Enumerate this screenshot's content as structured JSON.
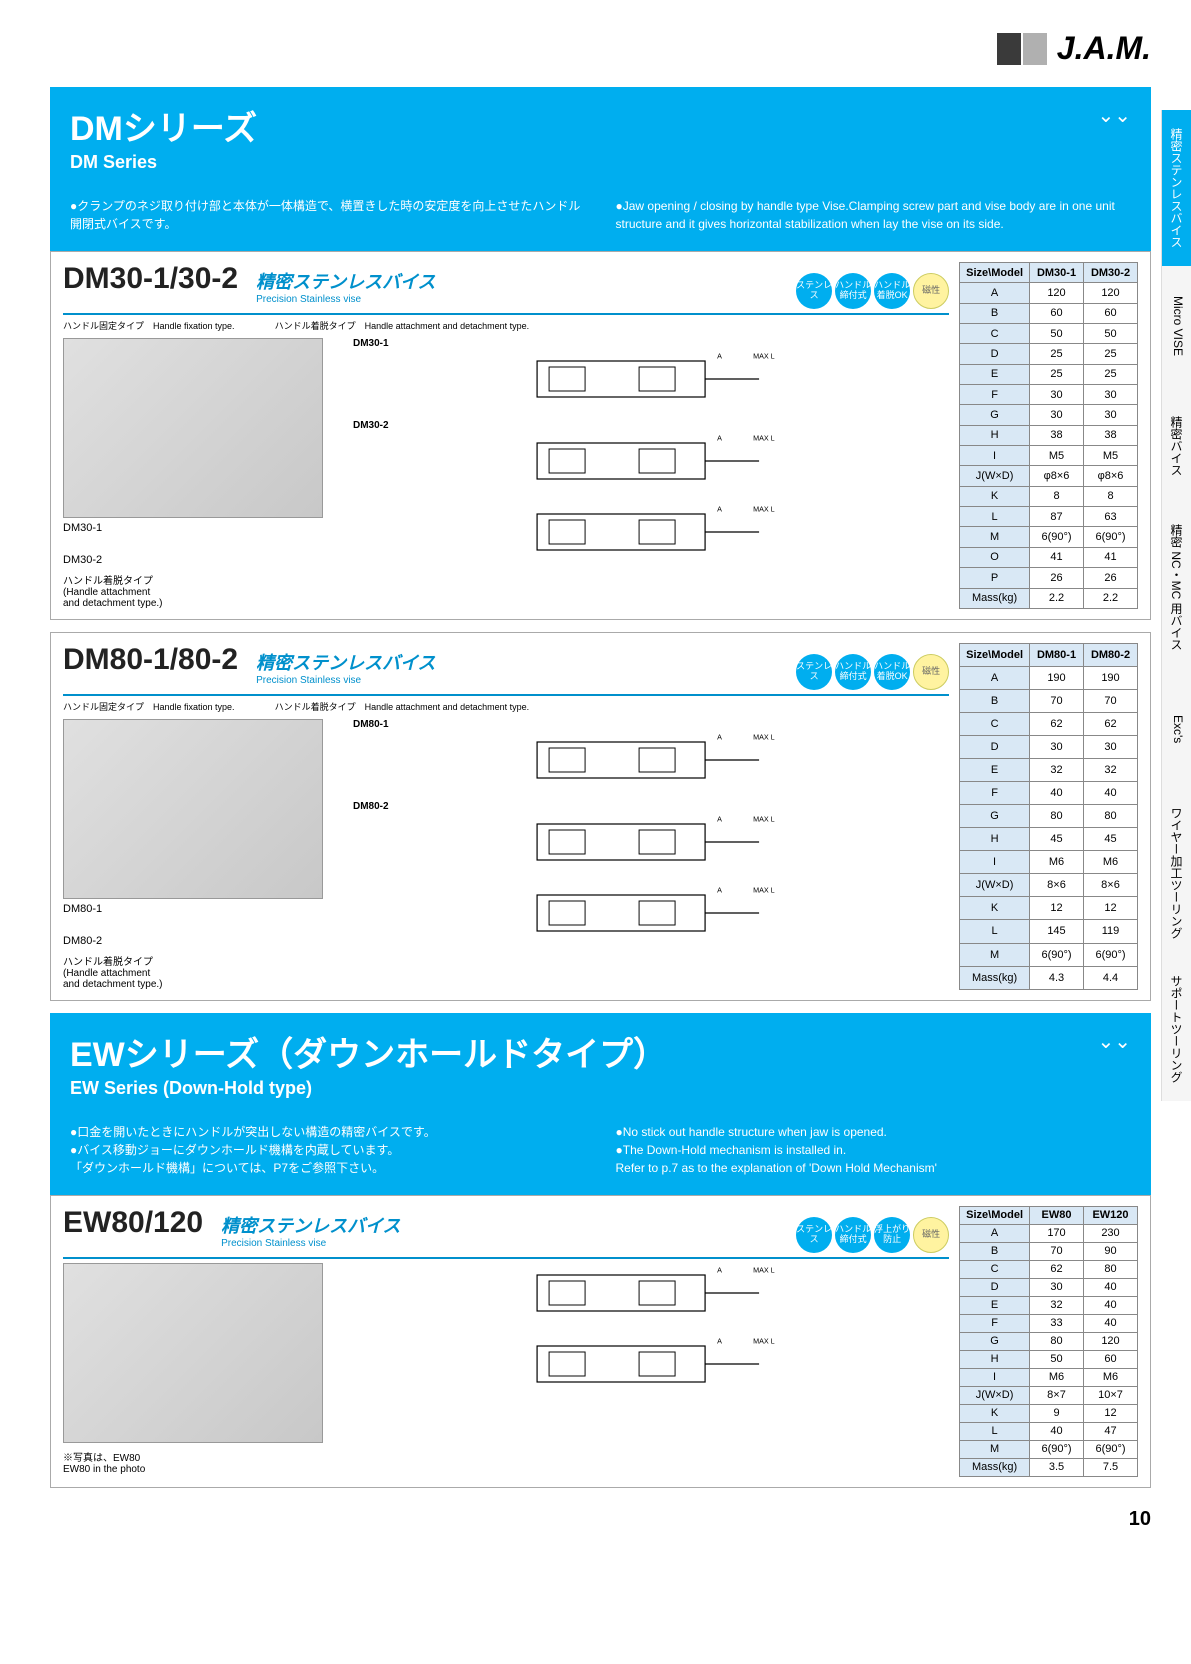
{
  "logo_text": "J.A.M.",
  "page_number": "10",
  "side_tabs": [
    {
      "label": "精密ステンレスバイス",
      "active": true
    },
    {
      "label": "Micro VISE",
      "active": false
    },
    {
      "label": "精密バイス",
      "active": false
    },
    {
      "label": "精密 NC・MC 用バイス",
      "active": false
    },
    {
      "label": "Exc's",
      "active": false
    },
    {
      "label": "ワイヤー加工ツーリング",
      "active": false
    },
    {
      "label": "サポートツーリング",
      "active": false
    }
  ],
  "series": [
    {
      "title": "DMシリーズ",
      "subtitle": "DM Series",
      "desc_jp": "●クランプのネジ取り付け部と本体が一体構造で、横置きした時の安定度を向上させたハンドル開閉式バイスです。",
      "desc_en": "●Jaw opening / closing by handle type Vise.Clamping screw part and vise body are in one unit structure and it gives horizontal stabilization when lay the vise on its side.",
      "products": [
        {
          "name": "DM30-1/30-2",
          "tag": "精密ステンレスバイス",
          "tag_en": "Precision Stainless vise",
          "subtypes_l": "ハンドル固定タイプ　Handle fixation type.",
          "subtypes_r": "ハンドル着脱タイプ　Handle attachment and detachment type.",
          "badges": [
            "ステンレス",
            "ハンドル\n締付式",
            "ハンドル\n着脱OK",
            "磁性"
          ],
          "badge_yellow_idx": 3,
          "photo_label": "DM30-1",
          "photo2_label": "DM30-2",
          "photo2_note": "ハンドル着脱タイプ\n(Handle attachment\nand detachment type.)",
          "drawing_labels": [
            "DM30-1",
            "DM30-2"
          ],
          "spec_headers": [
            "Size\\Model",
            "DM30-1",
            "DM30-2"
          ],
          "spec_rows": [
            [
              "A",
              "120",
              "120"
            ],
            [
              "B",
              "60",
              "60"
            ],
            [
              "C",
              "50",
              "50"
            ],
            [
              "D",
              "25",
              "25"
            ],
            [
              "E",
              "25",
              "25"
            ],
            [
              "F",
              "30",
              "30"
            ],
            [
              "G",
              "30",
              "30"
            ],
            [
              "H",
              "38",
              "38"
            ],
            [
              "I",
              "M5",
              "M5"
            ],
            [
              "J(W×D)",
              "φ8×6",
              "φ8×6"
            ],
            [
              "K",
              "8",
              "8"
            ],
            [
              "L",
              "87",
              "63"
            ],
            [
              "M",
              "6(90°)",
              "6(90°)"
            ],
            [
              "O",
              "41",
              "41"
            ],
            [
              "P",
              "26",
              "26"
            ],
            [
              "Mass(kg)",
              "2.2",
              "2.2"
            ]
          ]
        },
        {
          "name": "DM80-1/80-2",
          "tag": "精密ステンレスバイス",
          "tag_en": "Precision Stainless vise",
          "subtypes_l": "ハンドル固定タイプ　Handle fixation type.",
          "subtypes_r": "ハンドル着脱タイプ　Handle attachment and detachment type.",
          "badges": [
            "ステンレス",
            "ハンドル\n締付式",
            "ハンドル\n着脱OK",
            "磁性"
          ],
          "badge_yellow_idx": 3,
          "photo_label": "DM80-1",
          "photo2_label": "DM80-2",
          "photo2_note": "ハンドル着脱タイプ\n(Handle attachment\nand detachment type.)",
          "drawing_labels": [
            "DM80-1",
            "DM80-2"
          ],
          "spec_headers": [
            "Size\\Model",
            "DM80-1",
            "DM80-2"
          ],
          "spec_rows": [
            [
              "A",
              "190",
              "190"
            ],
            [
              "B",
              "70",
              "70"
            ],
            [
              "C",
              "62",
              "62"
            ],
            [
              "D",
              "30",
              "30"
            ],
            [
              "E",
              "32",
              "32"
            ],
            [
              "F",
              "40",
              "40"
            ],
            [
              "G",
              "80",
              "80"
            ],
            [
              "H",
              "45",
              "45"
            ],
            [
              "I",
              "M6",
              "M6"
            ],
            [
              "J(W×D)",
              "8×6",
              "8×6"
            ],
            [
              "K",
              "12",
              "12"
            ],
            [
              "L",
              "145",
              "119"
            ],
            [
              "M",
              "6(90°)",
              "6(90°)"
            ],
            [
              "Mass(kg)",
              "4.3",
              "4.4"
            ]
          ]
        }
      ]
    },
    {
      "title": "EWシリーズ（ダウンホールドタイプ）",
      "subtitle": "EW Series (Down-Hold type)",
      "desc_jp": "●口金を開いたときにハンドルが突出しない構造の精密バイスです。\n●バイス移動ジョーにダウンホールド機構を内蔵しています。\n「ダウンホールド機構」については、P7をご参照下さい。",
      "desc_en": "●No stick out handle structure when jaw is opened.\n●The Down-Hold mechanism is installed in.\nRefer to p.7 as to the explanation of 'Down Hold Mechanism'",
      "products": [
        {
          "name": "EW80/120",
          "tag": "精密ステンレスバイス",
          "tag_en": "Precision Stainless vise",
          "badges": [
            "ステンレス",
            "ハンドル\n締付式",
            "浮上がり\n防止",
            "磁性"
          ],
          "badge_yellow_idx": 3,
          "photo_note": "※写真は、EW80\nEW80 in the photo",
          "spec_headers": [
            "Size\\Model",
            "EW80",
            "EW120"
          ],
          "spec_rows": [
            [
              "A",
              "170",
              "230"
            ],
            [
              "B",
              "70",
              "90"
            ],
            [
              "C",
              "62",
              "80"
            ],
            [
              "D",
              "30",
              "40"
            ],
            [
              "E",
              "32",
              "40"
            ],
            [
              "F",
              "33",
              "40"
            ],
            [
              "G",
              "80",
              "120"
            ],
            [
              "H",
              "50",
              "60"
            ],
            [
              "I",
              "M6",
              "M6"
            ],
            [
              "J(W×D)",
              "8×7",
              "10×7"
            ],
            [
              "K",
              "9",
              "12"
            ],
            [
              "L",
              "40",
              "47"
            ],
            [
              "M",
              "6(90°)",
              "6(90°)"
            ],
            [
              "Mass(kg)",
              "3.5",
              "7.5"
            ]
          ]
        }
      ]
    }
  ],
  "colors": {
    "brand_blue": "#00aeef",
    "header_blue": "#d9e8f5",
    "border": "#888"
  }
}
